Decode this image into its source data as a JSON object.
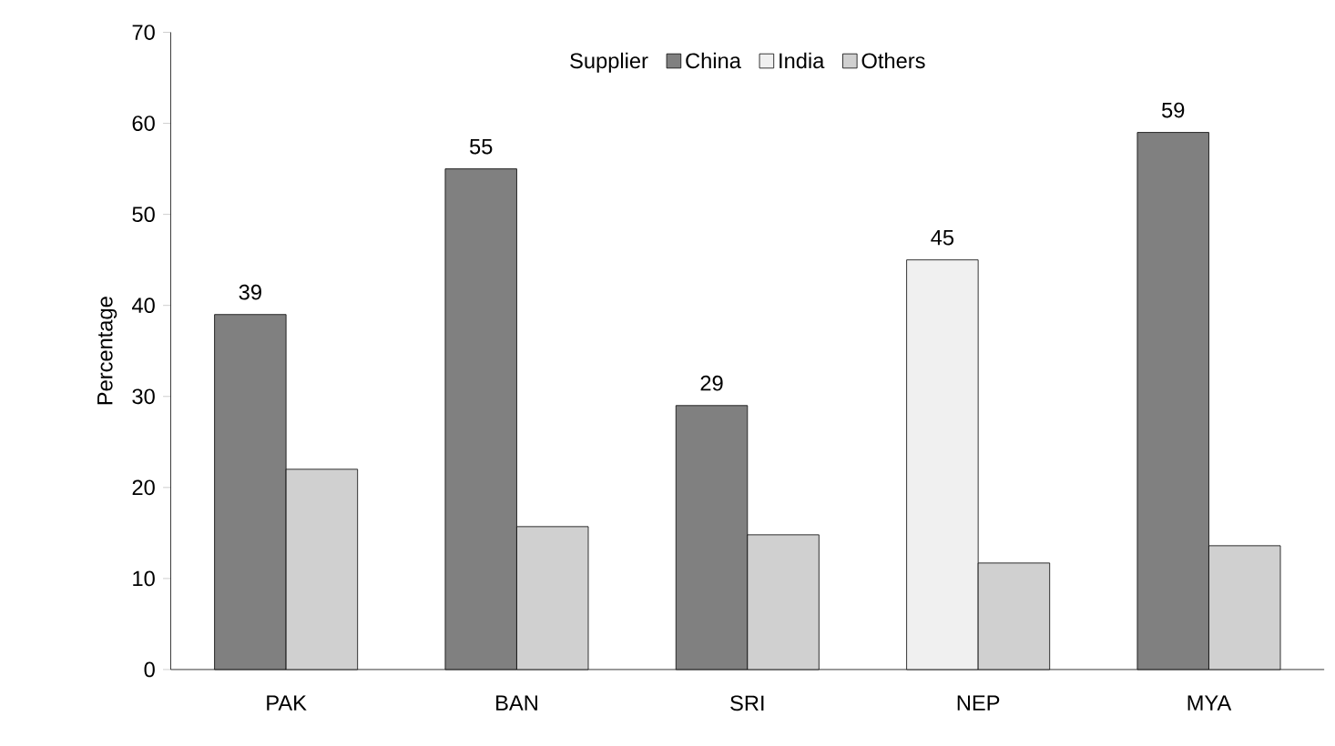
{
  "chart_data": {
    "type": "bar",
    "ylabel": "Percentage",
    "legend_title": "Supplier",
    "categories": [
      "PAK",
      "BAN",
      "SRI",
      "NEP",
      "MYA"
    ],
    "series": [
      {
        "name": "China",
        "color": "#808080",
        "values": [
          39,
          55,
          29,
          null,
          59
        ],
        "value_labels": [
          "39",
          "55",
          "29",
          null,
          "59"
        ]
      },
      {
        "name": "India",
        "color": "#f0f0f0",
        "values": [
          null,
          null,
          null,
          45,
          null
        ],
        "value_labels": [
          null,
          null,
          null,
          "45",
          null
        ]
      },
      {
        "name": "Others",
        "color": "#d0d0d0",
        "values": [
          22,
          15.7,
          14.8,
          11.7,
          13.6
        ]
      }
    ],
    "ylim": [
      0,
      70
    ],
    "yticks": [
      0,
      10,
      20,
      30,
      40,
      50,
      60,
      70
    ],
    "grid": false,
    "legend": "top"
  }
}
